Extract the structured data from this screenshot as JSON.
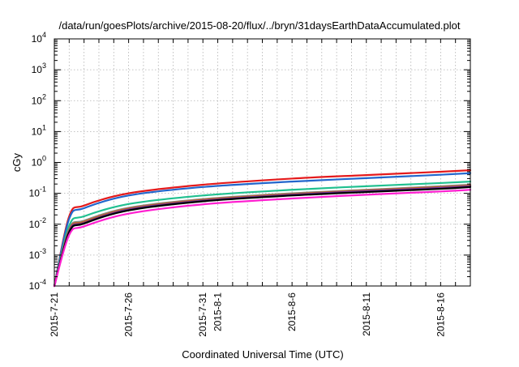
{
  "chart_data": {
    "type": "line",
    "title": "/data/run/goesPlots/archive/2015-08-20/flux/../bryn/31daysEarthDataAccumulated.plot",
    "xlabel": "Coordinated Universal Time (UTC)",
    "ylabel": "cGy",
    "yscale": "log",
    "ylim": [
      0.0001,
      10000
    ],
    "xlim": [
      "2015-07-21",
      "2015-08-18"
    ],
    "grid": true,
    "legend": "none",
    "y_ticks": [
      {
        "base": "10",
        "exp": "-4"
      },
      {
        "base": "10",
        "exp": "-3"
      },
      {
        "base": "10",
        "exp": "-2"
      },
      {
        "base": "10",
        "exp": "-1"
      },
      {
        "base": "10",
        "exp": "0"
      },
      {
        "base": "10",
        "exp": "1"
      },
      {
        "base": "10",
        "exp": "2"
      },
      {
        "base": "10",
        "exp": "3"
      },
      {
        "base": "10",
        "exp": "4"
      }
    ],
    "x_ticks": [
      "2015-7-21",
      "2015-7-26",
      "2015-7-31",
      "2015-8-1",
      "2015-8-6",
      "2015-8-11",
      "2015-8-16"
    ],
    "series": [
      {
        "color": "#e41a1c",
        "x": [
          "2015-07-21",
          "2015-07-22",
          "2015-07-23",
          "2015-07-26",
          "2015-07-31",
          "2015-08-06",
          "2015-08-11",
          "2015-08-16",
          "2015-08-18"
        ],
        "values": [
          0.0001,
          0.018,
          0.04,
          0.1,
          0.19,
          0.3,
          0.39,
          0.5,
          0.56
        ]
      },
      {
        "color": "#2266cc",
        "x": [
          "2015-07-21",
          "2015-07-22",
          "2015-07-23",
          "2015-07-26",
          "2015-07-31",
          "2015-08-06",
          "2015-08-11",
          "2015-08-16",
          "2015-08-18"
        ],
        "values": [
          0.0001,
          0.015,
          0.033,
          0.085,
          0.16,
          0.24,
          0.31,
          0.4,
          0.45
        ]
      },
      {
        "color": "#20c090",
        "x": [
          "2015-07-21",
          "2015-07-22",
          "2015-07-23",
          "2015-07-26",
          "2015-07-31",
          "2015-08-06",
          "2015-08-11",
          "2015-08-16",
          "2015-08-18"
        ],
        "values": [
          0.0001,
          0.009,
          0.018,
          0.045,
          0.085,
          0.13,
          0.17,
          0.215,
          0.24
        ]
      },
      {
        "color": "#888888",
        "x": [
          "2015-07-21",
          "2015-07-22",
          "2015-07-23",
          "2015-07-26",
          "2015-07-31",
          "2015-08-06",
          "2015-08-11",
          "2015-08-16",
          "2015-08-18"
        ],
        "values": [
          0.0001,
          0.007,
          0.013,
          0.034,
          0.065,
          0.1,
          0.13,
          0.17,
          0.19
        ]
      },
      {
        "color": "#c06020",
        "x": [
          "2015-07-21",
          "2015-07-22",
          "2015-07-23",
          "2015-07-26",
          "2015-07-31",
          "2015-08-06",
          "2015-08-11",
          "2015-08-16",
          "2015-08-18"
        ],
        "values": [
          0.0001,
          0.0065,
          0.012,
          0.032,
          0.062,
          0.095,
          0.125,
          0.16,
          0.18
        ]
      },
      {
        "color": "#7030a0",
        "x": [
          "2015-07-21",
          "2015-07-22",
          "2015-07-23",
          "2015-07-26",
          "2015-07-31",
          "2015-08-06",
          "2015-08-11",
          "2015-08-16",
          "2015-08-18"
        ],
        "values": [
          0.0001,
          0.006,
          0.011,
          0.03,
          0.058,
          0.09,
          0.118,
          0.15,
          0.17
        ]
      },
      {
        "color": "#000000",
        "x": [
          "2015-07-21",
          "2015-07-22",
          "2015-07-23",
          "2015-07-26",
          "2015-07-31",
          "2015-08-06",
          "2015-08-11",
          "2015-08-16",
          "2015-08-18"
        ],
        "values": [
          0.0001,
          0.0055,
          0.0105,
          0.028,
          0.055,
          0.085,
          0.11,
          0.14,
          0.16
        ]
      },
      {
        "color": "#ff1fd0",
        "x": [
          "2015-07-21",
          "2015-07-22",
          "2015-07-23",
          "2015-07-26",
          "2015-07-31",
          "2015-08-06",
          "2015-08-11",
          "2015-08-16",
          "2015-08-18"
        ],
        "values": [
          0.0001,
          0.0045,
          0.0085,
          0.022,
          0.044,
          0.068,
          0.09,
          0.115,
          0.13
        ]
      }
    ]
  }
}
